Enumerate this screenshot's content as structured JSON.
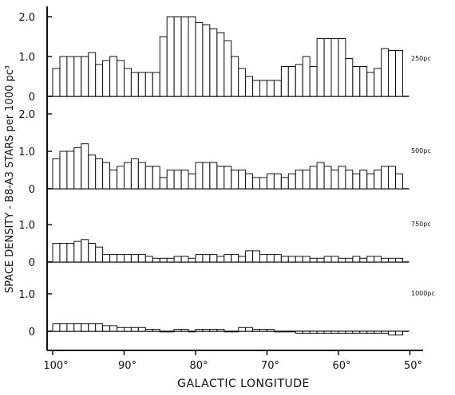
{
  "chart_data": {
    "type": "bar",
    "xlabel": "GALACTIC LONGITUDE",
    "ylabel": "SPACE DENSITY - B8-A3 STARS per 1000 pc³",
    "x_ticks": [
      {
        "value": 100,
        "label": "100°"
      },
      {
        "value": 90,
        "label": "90°"
      },
      {
        "value": 80,
        "label": "80°"
      },
      {
        "value": 70,
        "label": "70°"
      },
      {
        "value": 60,
        "label": "60°"
      },
      {
        "value": 50,
        "label": "50°"
      }
    ],
    "xlim": [
      101,
      48
    ],
    "bin_width_deg": 1,
    "panels": [
      {
        "name": "250 pc",
        "ylim": [
          0,
          2.2
        ],
        "y_ticks": [
          {
            "value": 0,
            "label": "0"
          },
          {
            "value": 1.0,
            "label": "1.0"
          },
          {
            "value": 2.0,
            "label": "2.0"
          }
        ],
        "x_start": [
          100,
          99,
          98,
          97,
          96,
          95,
          94,
          93,
          92,
          91,
          90,
          89,
          88,
          87,
          86,
          85,
          84,
          83,
          82,
          81,
          80,
          79,
          78,
          77,
          76,
          75,
          74,
          73,
          72,
          71,
          70,
          69,
          68,
          67,
          66,
          65,
          64,
          63,
          62,
          61,
          60,
          59,
          58,
          57,
          56,
          55,
          54,
          53,
          52
        ],
        "values": [
          0.7,
          1.0,
          1.0,
          1.0,
          1.0,
          1.1,
          0.8,
          0.9,
          1.0,
          0.9,
          0.7,
          0.6,
          0.6,
          0.6,
          0.6,
          1.5,
          2.0,
          2.0,
          2.0,
          2.0,
          1.85,
          1.8,
          1.7,
          1.6,
          1.4,
          1.0,
          0.7,
          0.5,
          0.4,
          0.4,
          0.4,
          0.4,
          0.75,
          0.75,
          0.8,
          1.0,
          0.75,
          1.45,
          1.45,
          1.45,
          1.45,
          0.95,
          0.75,
          0.75,
          0.6,
          0.7,
          1.2,
          1.15,
          1.15
        ]
      },
      {
        "name": "500 pc",
        "ylim": [
          0,
          2.2
        ],
        "y_ticks": [
          {
            "value": 0,
            "label": "0"
          },
          {
            "value": 1.0,
            "label": "1.0"
          },
          {
            "value": 2.0,
            "label": "2.0"
          }
        ],
        "x_start": [
          100,
          99,
          98,
          97,
          96,
          95,
          94,
          93,
          92,
          91,
          90,
          89,
          88,
          87,
          86,
          85,
          84,
          83,
          82,
          81,
          80,
          79,
          78,
          77,
          76,
          75,
          74,
          73,
          72,
          71,
          70,
          69,
          68,
          67,
          66,
          65,
          64,
          63,
          62,
          61,
          60,
          59,
          58,
          57,
          56,
          55,
          54,
          53,
          52
        ],
        "values": [
          0.8,
          1.0,
          1.0,
          1.1,
          1.2,
          0.9,
          0.8,
          0.7,
          0.5,
          0.6,
          0.7,
          0.8,
          0.7,
          0.6,
          0.6,
          0.3,
          0.5,
          0.5,
          0.5,
          0.4,
          0.7,
          0.7,
          0.7,
          0.6,
          0.6,
          0.5,
          0.5,
          0.4,
          0.3,
          0.3,
          0.4,
          0.4,
          0.3,
          0.4,
          0.5,
          0.5,
          0.6,
          0.7,
          0.6,
          0.5,
          0.6,
          0.5,
          0.4,
          0.5,
          0.4,
          0.5,
          0.6,
          0.6,
          0.4
        ]
      },
      {
        "name": "750 pc",
        "ylim": [
          0,
          2.2
        ],
        "y_ticks": [
          {
            "value": 0,
            "label": "0"
          },
          {
            "value": 1.0,
            "label": "1.0"
          }
        ],
        "x_start": [
          100,
          99,
          98,
          97,
          96,
          95,
          94,
          93,
          92,
          91,
          90,
          89,
          88,
          87,
          86,
          85,
          84,
          83,
          82,
          81,
          80,
          79,
          78,
          77,
          76,
          75,
          74,
          73,
          72,
          71,
          70,
          69,
          68,
          67,
          66,
          65,
          64,
          63,
          62,
          61,
          60,
          59,
          58,
          57,
          56,
          55,
          54,
          53,
          52
        ],
        "values": [
          0.5,
          0.5,
          0.5,
          0.55,
          0.6,
          0.5,
          0.4,
          0.2,
          0.2,
          0.2,
          0.2,
          0.2,
          0.2,
          0.15,
          0.1,
          0.1,
          0.1,
          0.15,
          0.15,
          0.1,
          0.2,
          0.2,
          0.2,
          0.15,
          0.2,
          0.2,
          0.15,
          0.3,
          0.3,
          0.2,
          0.2,
          0.2,
          0.15,
          0.15,
          0.15,
          0.15,
          0.1,
          0.1,
          0.15,
          0.15,
          0.1,
          0.1,
          0.15,
          0.1,
          0.15,
          0.15,
          0.1,
          0.1,
          0.1
        ]
      },
      {
        "name": "1000 pc",
        "ylim": [
          -0.3,
          1.2
        ],
        "y_ticks": [
          {
            "value": 0,
            "label": "0"
          },
          {
            "value": 1.0,
            "label": "1.0"
          }
        ],
        "x_start": [
          100,
          99,
          98,
          97,
          96,
          95,
          94,
          93,
          92,
          91,
          90,
          89,
          88,
          87,
          86,
          85,
          84,
          83,
          82,
          81,
          80,
          79,
          78,
          77,
          76,
          75,
          74,
          73,
          72,
          71,
          70,
          69,
          68,
          67,
          66,
          65,
          64,
          63,
          62,
          61,
          60,
          59,
          58,
          57,
          56,
          55,
          54,
          53,
          52
        ],
        "values": [
          0.2,
          0.2,
          0.2,
          0.2,
          0.2,
          0.2,
          0.2,
          0.15,
          0.15,
          0.1,
          0.1,
          0.1,
          0.1,
          0.05,
          0.05,
          0.0,
          0.0,
          0.05,
          0.05,
          0.0,
          0.05,
          0.05,
          0.05,
          0.05,
          0.0,
          0.0,
          0.1,
          0.1,
          0.05,
          0.05,
          0.05,
          0.0,
          0.0,
          0.0,
          -0.05,
          -0.05,
          -0.05,
          -0.05,
          -0.05,
          -0.05,
          -0.05,
          -0.05,
          -0.05,
          -0.05,
          -0.05,
          -0.05,
          -0.05,
          -0.1,
          -0.1
        ]
      }
    ],
    "grid": false,
    "legend": "none"
  }
}
